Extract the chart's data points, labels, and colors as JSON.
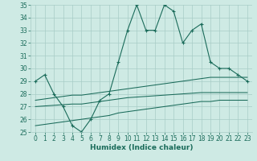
{
  "xlabel": "Humidex (Indice chaleur)",
  "x_values": [
    0,
    1,
    2,
    3,
    4,
    5,
    6,
    7,
    8,
    9,
    10,
    11,
    12,
    13,
    14,
    15,
    16,
    17,
    18,
    19,
    20,
    21,
    22,
    23
  ],
  "main_line": [
    29,
    29.5,
    28,
    27,
    25.5,
    25,
    26,
    27.5,
    28,
    30.5,
    33,
    35,
    33,
    33,
    35,
    34.5,
    32,
    33,
    33.5,
    30.5,
    30,
    30,
    29.5,
    29
  ],
  "upper_line": [
    27.5,
    27.6,
    27.7,
    27.8,
    27.9,
    27.9,
    28.0,
    28.1,
    28.2,
    28.3,
    28.4,
    28.5,
    28.6,
    28.7,
    28.8,
    28.9,
    29.0,
    29.1,
    29.2,
    29.3,
    29.3,
    29.3,
    29.3,
    29.3
  ],
  "mid_line": [
    27.0,
    27.05,
    27.1,
    27.15,
    27.2,
    27.2,
    27.3,
    27.4,
    27.5,
    27.6,
    27.7,
    27.75,
    27.8,
    27.85,
    27.9,
    27.95,
    28.0,
    28.05,
    28.1,
    28.1,
    28.1,
    28.1,
    28.1,
    28.1
  ],
  "lower_line": [
    25.5,
    25.6,
    25.7,
    25.8,
    25.9,
    26.0,
    26.1,
    26.2,
    26.3,
    26.5,
    26.6,
    26.7,
    26.8,
    26.9,
    27.0,
    27.1,
    27.2,
    27.3,
    27.4,
    27.4,
    27.5,
    27.5,
    27.5,
    27.5
  ],
  "bg_color": "#ceeae4",
  "grid_color": "#a8ccc6",
  "line_color": "#1a6b5a",
  "ylim": [
    25,
    35
  ],
  "yticks": [
    25,
    26,
    27,
    28,
    29,
    30,
    31,
    32,
    33,
    34,
    35
  ],
  "xticks": [
    0,
    1,
    2,
    3,
    4,
    5,
    6,
    7,
    8,
    9,
    10,
    11,
    12,
    13,
    14,
    15,
    16,
    17,
    18,
    19,
    20,
    21,
    22,
    23
  ],
  "tick_fontsize": 5.5,
  "xlabel_fontsize": 6.5
}
